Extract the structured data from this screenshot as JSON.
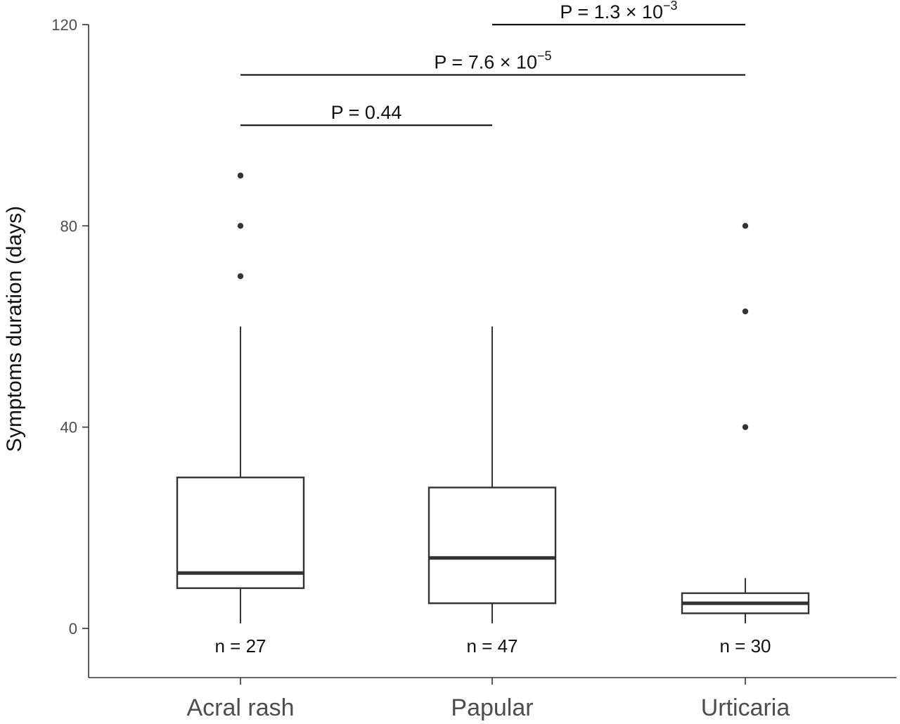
{
  "chart_data": {
    "type": "box",
    "ylabel": "Symptoms duration (days)",
    "xlabel": "",
    "ylim": [
      -10,
      120
    ],
    "yticks": [
      0,
      40,
      80,
      120
    ],
    "grid": false,
    "categories": [
      "Acral rash",
      "Papular",
      "Urticaria"
    ],
    "boxes": [
      {
        "category": "Acral rash",
        "whisker_low": 1,
        "q1": 8,
        "median": 11,
        "q3": 30,
        "whisker_high": 60,
        "outliers": [
          70,
          80,
          90
        ],
        "n_label": "n = 27"
      },
      {
        "category": "Papular",
        "whisker_low": 1,
        "q1": 5,
        "median": 14,
        "q3": 28,
        "whisker_high": 60,
        "outliers": [],
        "n_label": "n = 47"
      },
      {
        "category": "Urticaria",
        "whisker_low": 1,
        "q1": 3,
        "median": 5,
        "q3": 7,
        "whisker_high": 10,
        "outliers": [
          40,
          63,
          80
        ],
        "n_label": "n = 30"
      }
    ],
    "comparisons": [
      {
        "from": "Acral rash",
        "to": "Papular",
        "y": 100,
        "label_main": "P = 0.44",
        "label_exp": ""
      },
      {
        "from": "Acral rash",
        "to": "Urticaria",
        "y": 110,
        "label_main": "P = 7.6 × 10",
        "label_exp": "−5"
      },
      {
        "from": "Papular",
        "to": "Urticaria",
        "y": 120,
        "label_main": "P = 1.3 × 10",
        "label_exp": "−3"
      }
    ]
  }
}
